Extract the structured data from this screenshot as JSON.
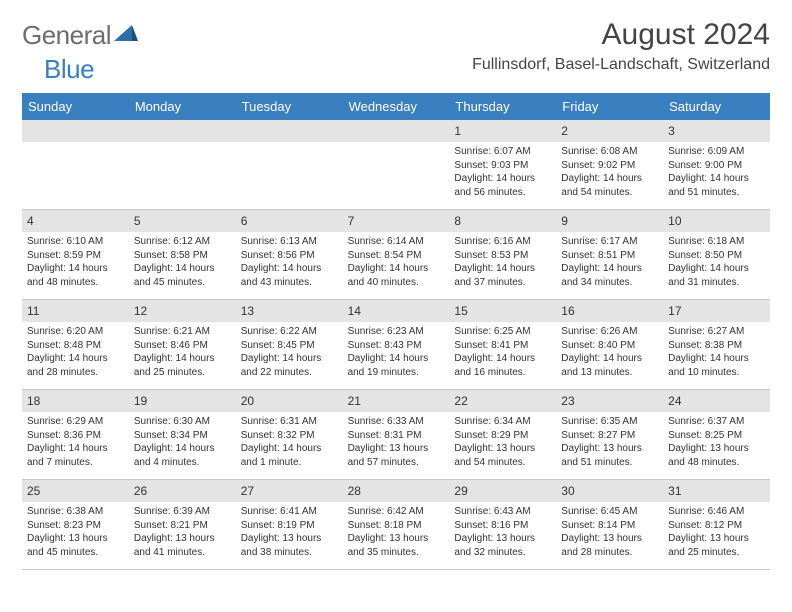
{
  "logo": {
    "word1": "General",
    "word2": "Blue"
  },
  "title": "August 2024",
  "location": "Fullinsdorf, Basel-Landschaft, Switzerland",
  "header_bg": "#3a7fbf",
  "header_fg": "#ffffff",
  "daynum_bg": "#e4e4e4",
  "border_color": "#c9c9c9",
  "text_color": "#333333",
  "weekdays": [
    "Sunday",
    "Monday",
    "Tuesday",
    "Wednesday",
    "Thursday",
    "Friday",
    "Saturday"
  ],
  "leading_blanks": 4,
  "days": [
    {
      "n": "1",
      "sr": "6:07 AM",
      "ss": "9:03 PM",
      "dl": "14 hours and 56 minutes."
    },
    {
      "n": "2",
      "sr": "6:08 AM",
      "ss": "9:02 PM",
      "dl": "14 hours and 54 minutes."
    },
    {
      "n": "3",
      "sr": "6:09 AM",
      "ss": "9:00 PM",
      "dl": "14 hours and 51 minutes."
    },
    {
      "n": "4",
      "sr": "6:10 AM",
      "ss": "8:59 PM",
      "dl": "14 hours and 48 minutes."
    },
    {
      "n": "5",
      "sr": "6:12 AM",
      "ss": "8:58 PM",
      "dl": "14 hours and 45 minutes."
    },
    {
      "n": "6",
      "sr": "6:13 AM",
      "ss": "8:56 PM",
      "dl": "14 hours and 43 minutes."
    },
    {
      "n": "7",
      "sr": "6:14 AM",
      "ss": "8:54 PM",
      "dl": "14 hours and 40 minutes."
    },
    {
      "n": "8",
      "sr": "6:16 AM",
      "ss": "8:53 PM",
      "dl": "14 hours and 37 minutes."
    },
    {
      "n": "9",
      "sr": "6:17 AM",
      "ss": "8:51 PM",
      "dl": "14 hours and 34 minutes."
    },
    {
      "n": "10",
      "sr": "6:18 AM",
      "ss": "8:50 PM",
      "dl": "14 hours and 31 minutes."
    },
    {
      "n": "11",
      "sr": "6:20 AM",
      "ss": "8:48 PM",
      "dl": "14 hours and 28 minutes."
    },
    {
      "n": "12",
      "sr": "6:21 AM",
      "ss": "8:46 PM",
      "dl": "14 hours and 25 minutes."
    },
    {
      "n": "13",
      "sr": "6:22 AM",
      "ss": "8:45 PM",
      "dl": "14 hours and 22 minutes."
    },
    {
      "n": "14",
      "sr": "6:23 AM",
      "ss": "8:43 PM",
      "dl": "14 hours and 19 minutes."
    },
    {
      "n": "15",
      "sr": "6:25 AM",
      "ss": "8:41 PM",
      "dl": "14 hours and 16 minutes."
    },
    {
      "n": "16",
      "sr": "6:26 AM",
      "ss": "8:40 PM",
      "dl": "14 hours and 13 minutes."
    },
    {
      "n": "17",
      "sr": "6:27 AM",
      "ss": "8:38 PM",
      "dl": "14 hours and 10 minutes."
    },
    {
      "n": "18",
      "sr": "6:29 AM",
      "ss": "8:36 PM",
      "dl": "14 hours and 7 minutes."
    },
    {
      "n": "19",
      "sr": "6:30 AM",
      "ss": "8:34 PM",
      "dl": "14 hours and 4 minutes."
    },
    {
      "n": "20",
      "sr": "6:31 AM",
      "ss": "8:32 PM",
      "dl": "14 hours and 1 minute."
    },
    {
      "n": "21",
      "sr": "6:33 AM",
      "ss": "8:31 PM",
      "dl": "13 hours and 57 minutes."
    },
    {
      "n": "22",
      "sr": "6:34 AM",
      "ss": "8:29 PM",
      "dl": "13 hours and 54 minutes."
    },
    {
      "n": "23",
      "sr": "6:35 AM",
      "ss": "8:27 PM",
      "dl": "13 hours and 51 minutes."
    },
    {
      "n": "24",
      "sr": "6:37 AM",
      "ss": "8:25 PM",
      "dl": "13 hours and 48 minutes."
    },
    {
      "n": "25",
      "sr": "6:38 AM",
      "ss": "8:23 PM",
      "dl": "13 hours and 45 minutes."
    },
    {
      "n": "26",
      "sr": "6:39 AM",
      "ss": "8:21 PM",
      "dl": "13 hours and 41 minutes."
    },
    {
      "n": "27",
      "sr": "6:41 AM",
      "ss": "8:19 PM",
      "dl": "13 hours and 38 minutes."
    },
    {
      "n": "28",
      "sr": "6:42 AM",
      "ss": "8:18 PM",
      "dl": "13 hours and 35 minutes."
    },
    {
      "n": "29",
      "sr": "6:43 AM",
      "ss": "8:16 PM",
      "dl": "13 hours and 32 minutes."
    },
    {
      "n": "30",
      "sr": "6:45 AM",
      "ss": "8:14 PM",
      "dl": "13 hours and 28 minutes."
    },
    {
      "n": "31",
      "sr": "6:46 AM",
      "ss": "8:12 PM",
      "dl": "13 hours and 25 minutes."
    }
  ],
  "labels": {
    "sunrise": "Sunrise: ",
    "sunset": "Sunset: ",
    "daylight": "Daylight: "
  }
}
